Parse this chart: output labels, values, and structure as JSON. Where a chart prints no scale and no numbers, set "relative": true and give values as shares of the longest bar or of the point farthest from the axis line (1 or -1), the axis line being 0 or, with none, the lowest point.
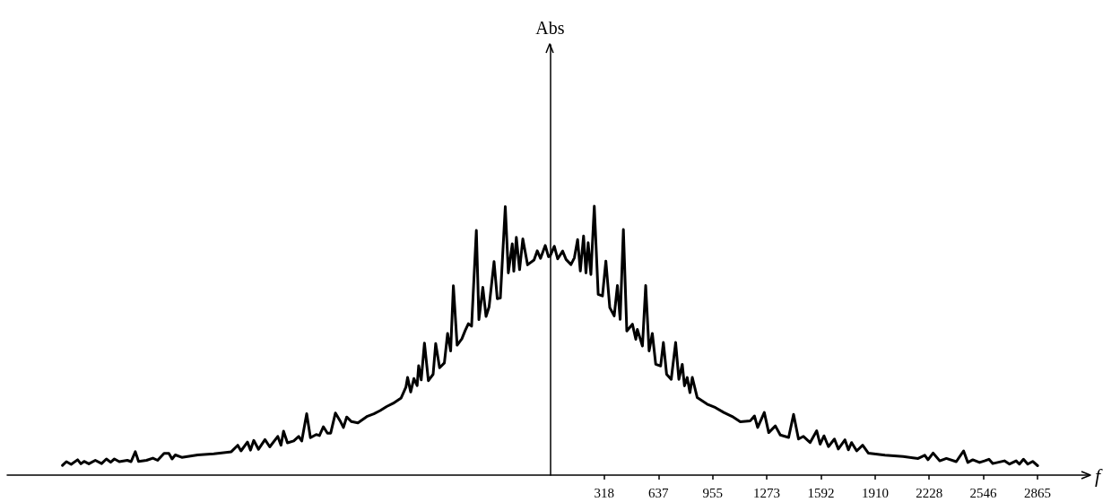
{
  "chart_data": {
    "type": "line",
    "xlabel": "f",
    "annotations": [
      "Abs"
    ],
    "relative": true,
    "line_style": "solid",
    "marker": "none",
    "grid": false,
    "tick_labels": "x",
    "xlim": [
      -3190,
      3170
    ],
    "xticks": [
      318,
      637,
      955,
      1273,
      1592,
      1910,
      2228,
      2546,
      2865
    ],
    "series": [
      {
        "color": "#000000",
        "x": [
          -2865,
          -2842,
          -2814,
          -2776,
          -2757,
          -2738,
          -2710,
          -2672,
          -2635,
          -2607,
          -2582,
          -2560,
          -2531,
          -2484,
          -2462,
          -2437,
          -2418,
          -2371,
          -2334,
          -2306,
          -2268,
          -2240,
          -2221,
          -2202,
          -2164,
          -2070,
          -1976,
          -1873,
          -1835,
          -1816,
          -1778,
          -1760,
          -1741,
          -1713,
          -1675,
          -1647,
          -1600,
          -1581,
          -1566,
          -1543,
          -1506,
          -1477,
          -1459,
          -1430,
          -1408,
          -1374,
          -1355,
          -1332,
          -1308,
          -1289,
          -1261,
          -1233,
          -1214,
          -1195,
          -1167,
          -1129,
          -1073,
          -1035,
          -998,
          -960,
          -922,
          -875,
          -847,
          -837,
          -819,
          -800,
          -781,
          -772,
          -757,
          -738,
          -715,
          -687,
          -672,
          -649,
          -621,
          -602,
          -584,
          -568,
          -546,
          -518,
          -499,
          -480,
          -461,
          -433,
          -418,
          -395,
          -376,
          -358,
          -329,
          -310,
          -292,
          -263,
          -245,
          -222,
          -213,
          -198,
          -179,
          -160,
          -132,
          -94,
          -75,
          -56,
          -28,
          -9,
          0,
          25,
          45,
          74,
          94,
          123,
          143,
          162,
          178,
          197,
          211,
          224,
          240,
          260,
          283,
          308,
          328,
          351,
          377,
          396,
          412,
          431,
          451,
          484,
          504,
          513,
          543,
          562,
          582,
          601,
          621,
          650,
          666,
          685,
          712,
          738,
          757,
          777,
          790,
          806,
          822,
          836,
          865,
          923,
          972,
          1021,
          1070,
          1118,
          1177,
          1201,
          1220,
          1259,
          1285,
          1324,
          1353,
          1402,
          1431,
          1460,
          1489,
          1528,
          1567,
          1587,
          1610,
          1636,
          1671,
          1694,
          1733,
          1753,
          1772,
          1802,
          1837,
          1870,
          1968,
          2075,
          2163,
          2202,
          2221,
          2251,
          2290,
          2329,
          2387,
          2430,
          2455,
          2484,
          2524,
          2553,
          2579,
          2601,
          2670,
          2700,
          2739,
          2758,
          2782,
          2807,
          2836,
          2865
        ],
        "values": [
          0.036,
          0.05,
          0.04,
          0.057,
          0.042,
          0.051,
          0.042,
          0.055,
          0.043,
          0.06,
          0.048,
          0.06,
          0.05,
          0.055,
          0.05,
          0.087,
          0.051,
          0.055,
          0.063,
          0.055,
          0.081,
          0.081,
          0.06,
          0.075,
          0.066,
          0.075,
          0.079,
          0.087,
          0.111,
          0.09,
          0.123,
          0.093,
          0.129,
          0.096,
          0.132,
          0.105,
          0.144,
          0.111,
          0.163,
          0.12,
          0.127,
          0.144,
          0.127,
          0.228,
          0.139,
          0.151,
          0.147,
          0.18,
          0.156,
          0.156,
          0.231,
          0.201,
          0.177,
          0.216,
          0.199,
          0.194,
          0.219,
          0.228,
          0.24,
          0.255,
          0.267,
          0.287,
          0.327,
          0.363,
          0.309,
          0.359,
          0.333,
          0.407,
          0.354,
          0.491,
          0.351,
          0.375,
          0.489,
          0.399,
          0.417,
          0.527,
          0.462,
          0.704,
          0.483,
          0.507,
          0.537,
          0.563,
          0.554,
          0.91,
          0.578,
          0.698,
          0.59,
          0.626,
          0.794,
          0.656,
          0.659,
          0.998,
          0.752,
          0.86,
          0.758,
          0.884,
          0.764,
          0.878,
          0.782,
          0.8,
          0.834,
          0.806,
          0.854,
          0.812,
          0.814,
          0.851,
          0.804,
          0.833,
          0.802,
          0.783,
          0.808,
          0.876,
          0.759,
          0.889,
          0.752,
          0.864,
          0.746,
          1,
          0.672,
          0.666,
          0.796,
          0.623,
          0.592,
          0.705,
          0.579,
          0.913,
          0.536,
          0.561,
          0.505,
          0.542,
          0.48,
          0.705,
          0.462,
          0.527,
          0.412,
          0.406,
          0.493,
          0.375,
          0.356,
          0.493,
          0.356,
          0.412,
          0.332,
          0.363,
          0.307,
          0.363,
          0.288,
          0.264,
          0.251,
          0.233,
          0.218,
          0.198,
          0.202,
          0.22,
          0.177,
          0.233,
          0.158,
          0.183,
          0.149,
          0.14,
          0.226,
          0.134,
          0.144,
          0.121,
          0.165,
          0.115,
          0.146,
          0.106,
          0.134,
          0.097,
          0.131,
          0.094,
          0.121,
          0.09,
          0.111,
          0.082,
          0.074,
          0.069,
          0.062,
          0.074,
          0.057,
          0.082,
          0.053,
          0.062,
          0.05,
          0.09,
          0.047,
          0.057,
          0.047,
          0.053,
          0.059,
          0.043,
          0.053,
          0.041,
          0.053,
          0.041,
          0.059,
          0.041,
          0.051,
          0.035
        ]
      }
    ]
  }
}
